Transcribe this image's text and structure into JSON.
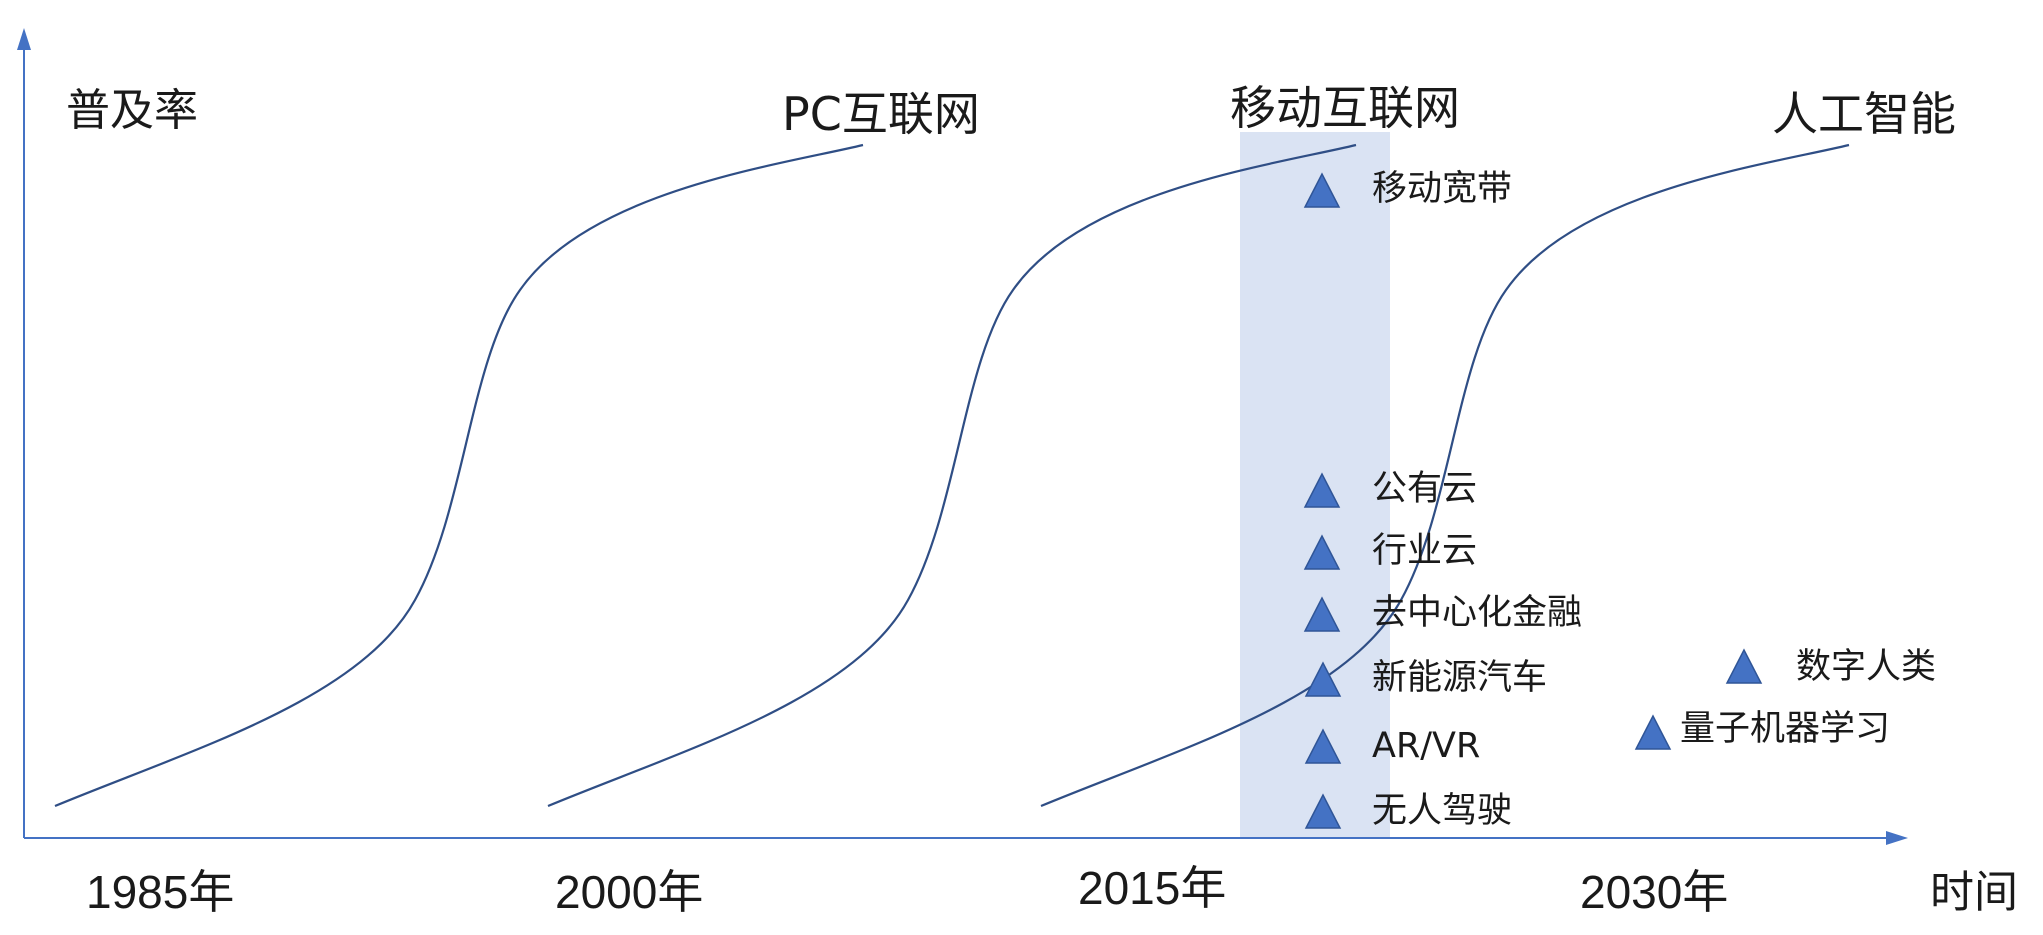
{
  "axes": {
    "y_label": "普及率",
    "x_label": "时间",
    "color": "#4472C4"
  },
  "years": [
    "1985年",
    "2000年",
    "2015年",
    "2030年"
  ],
  "waves": [
    {
      "title": "PC互联网"
    },
    {
      "title": "移动互联网"
    },
    {
      "title": "人工智能"
    }
  ],
  "highlight_color": "#DAE3F3",
  "curve_color": "#2F4E85",
  "marker_color": "#4472C4",
  "technologies": [
    "移动宽带",
    "公有云",
    "行业云",
    "去中心化金融",
    "新能源汽车",
    "AR/VR",
    "无人驾驶",
    "数字人类",
    "量子机器学习"
  ]
}
